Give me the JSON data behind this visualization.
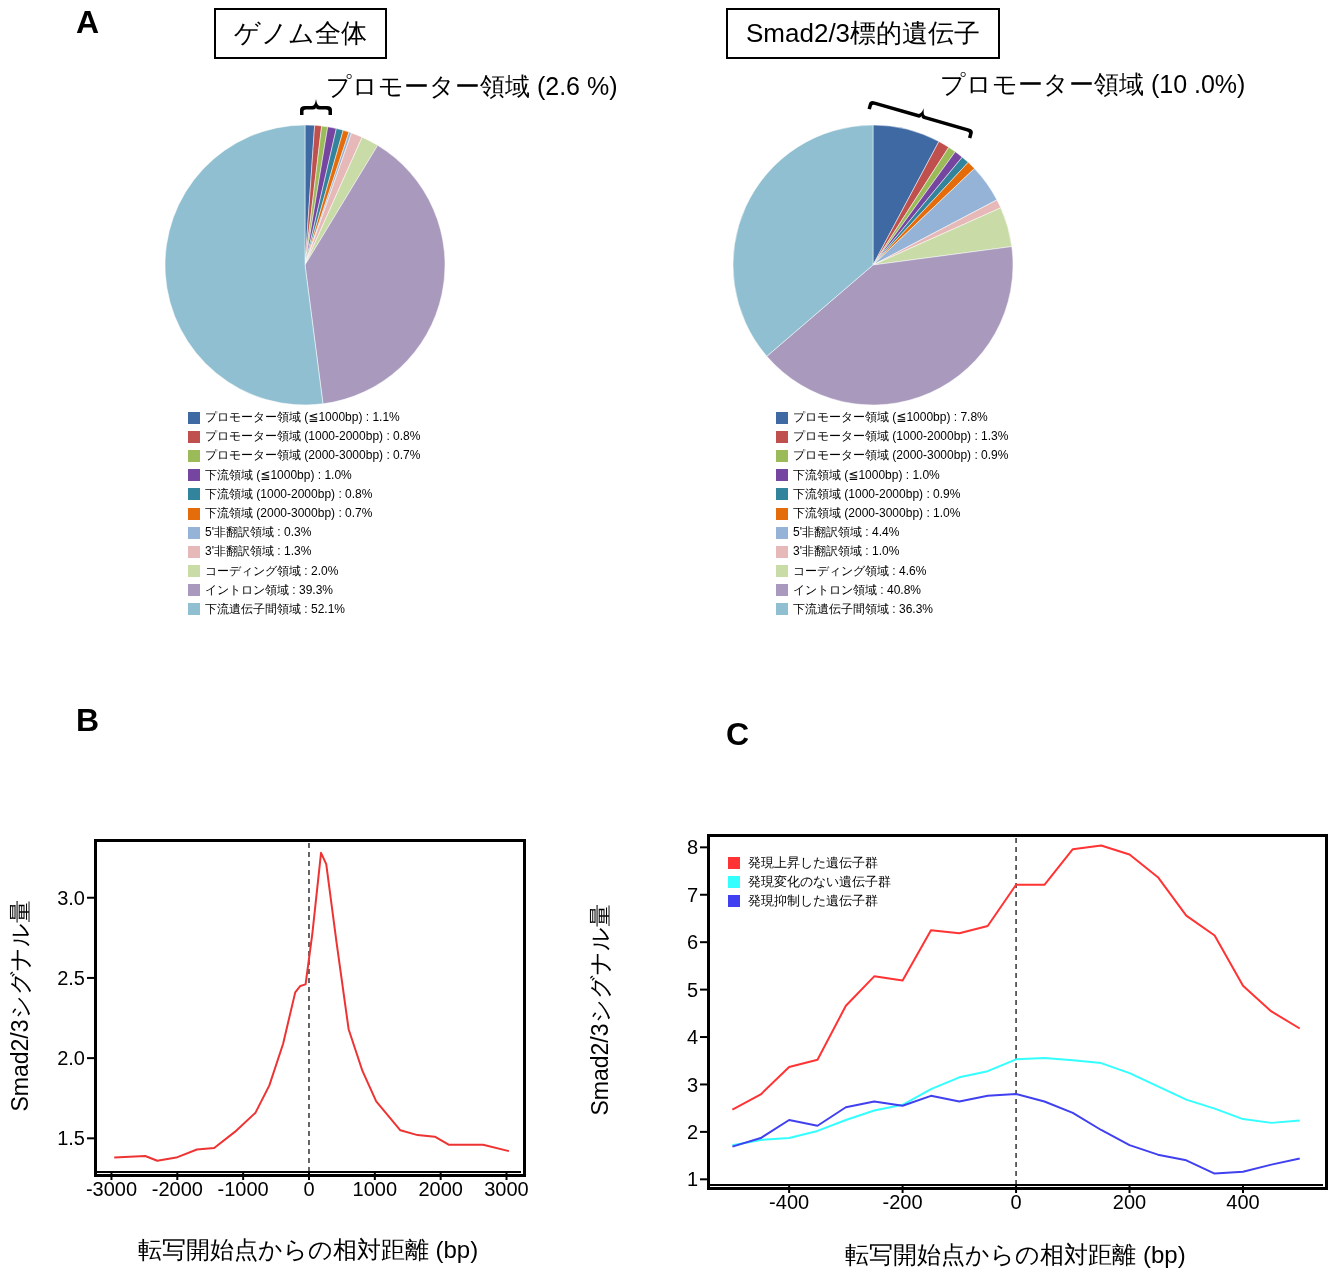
{
  "chart_data": [
    {
      "type": "pie",
      "title": "ゲノム全体",
      "annotations": [
        "A",
        "プロモーター領域 (2.6 %)"
      ],
      "legend": "bottom",
      "categories": [
        "プロモーター領域 (≦1000bp) : 1.1%",
        "プロモーター領域 (1000-2000bp) : 0.8%",
        "プロモーター領域 (2000-3000bp) : 0.7%",
        "下流領域 (≦1000bp) : 1.0%",
        "下流領域 (1000-2000bp) : 0.8%",
        "下流領域 (2000-3000bp) : 0.7%",
        "5'非翻訳領域 : 0.3%",
        "3'非翻訳領域 : 1.3%",
        "コーディング領域 : 2.0%",
        "イントロン領域 : 39.3%",
        "下流遺伝子間領域 : 52.1%"
      ],
      "values": [
        1.1,
        0.8,
        0.7,
        1.0,
        0.8,
        0.7,
        0.3,
        1.3,
        2.0,
        39.3,
        52.1
      ],
      "colors": [
        "#3f69a3",
        "#c0504d",
        "#9bbb59",
        "#7545a0",
        "#31849b",
        "#e46c0a",
        "#95b3d7",
        "#e6b9b8",
        "#c9dba6",
        "#a899bd",
        "#8fbfd0"
      ]
    },
    {
      "type": "pie",
      "title": "Smad2/3標的遺伝子",
      "annotations": [
        "プロモーター領域 (10 .0%)"
      ],
      "legend": "bottom",
      "categories": [
        "プロモーター領域 (≦1000bp) : 7.8%",
        "プロモーター領域 (1000-2000bp) : 1.3%",
        "プロモーター領域 (2000-3000bp) : 0.9%",
        "下流領域 (≦1000bp) : 1.0%",
        "下流領域 (1000-2000bp) : 0.9%",
        "下流領域 (2000-3000bp) : 1.0%",
        "5'非翻訳領域 : 4.4%",
        "3'非翻訳領域 : 1.0%",
        "コーディング領域 : 4.6%",
        "イントロン領域 : 40.8%",
        "下流遺伝子間領域 : 36.3%"
      ],
      "values": [
        7.8,
        1.3,
        0.9,
        1.0,
        0.9,
        1.0,
        4.4,
        1.0,
        4.6,
        40.8,
        36.3
      ],
      "colors": [
        "#3f69a3",
        "#c0504d",
        "#9bbb59",
        "#7545a0",
        "#31849b",
        "#e46c0a",
        "#95b3d7",
        "#e6b9b8",
        "#c9dba6",
        "#a899bd",
        "#8fbfd0"
      ]
    },
    {
      "type": "line",
      "annotations": [
        "B"
      ],
      "xlabel": "転写開始点からの相対距離 (bp)",
      "ylabel": "Smad2/3シグナル量",
      "marker": "none",
      "x": [
        -2958,
        -2487,
        -2304,
        -2016,
        -1702,
        -1440,
        -1126,
        -812,
        -602,
        -393,
        -209,
        -131,
        -52,
        52,
        183,
        262,
        419,
        602,
        812,
        1021,
        1388,
        1649,
        1911,
        2121,
        2382,
        2644,
        3037
      ],
      "series": [
        {
          "color": "#ee3333",
          "values": [
            1.38,
            1.39,
            1.36,
            1.38,
            1.43,
            1.44,
            1.54,
            1.66,
            1.83,
            2.09,
            2.41,
            2.45,
            2.46,
            2.78,
            3.28,
            3.21,
            2.72,
            2.18,
            1.92,
            1.73,
            1.55,
            1.52,
            1.51,
            1.46,
            1.46,
            1.46,
            1.42
          ]
        }
      ],
      "xlim": [
        -3250,
        3220
      ],
      "xticks": [
        -3000,
        -2000,
        -1000,
        0,
        1000,
        2000,
        3000
      ],
      "ylim": [
        1.29,
        3.36
      ],
      "yticks": [
        1.5,
        {
          "value": 2,
          "label": "2.0"
        },
        2.5,
        {
          "value": 3,
          "label": "3.0"
        }
      ],
      "ref_lines": [
        {
          "axis": "x",
          "value": 0,
          "line_style": "dashed",
          "color": "#333333"
        }
      ]
    },
    {
      "type": "line",
      "annotations": [
        "C"
      ],
      "xlabel": "転写開始点からの相対距離 (bp)",
      "ylabel": "Smad2/3シグナル量",
      "marker": "none",
      "legend": "top left",
      "x": [
        -500,
        -450,
        -400,
        -350,
        -300,
        -250,
        -200,
        -150,
        -100,
        -50,
        0,
        50,
        100,
        150,
        200,
        250,
        300,
        350,
        400,
        450,
        500
      ],
      "series": [
        {
          "name": "発現上昇した遺伝子群",
          "color": "#ff3333",
          "values": [
            2.47,
            2.79,
            3.37,
            3.52,
            4.66,
            5.28,
            5.19,
            6.25,
            6.19,
            6.34,
            7.21,
            7.21,
            7.96,
            8.04,
            7.85,
            7.37,
            6.56,
            6.14,
            5.08,
            4.54,
            4.18
          ]
        },
        {
          "name": "発現変化のない遺伝子群",
          "color": "#33ffff",
          "values": [
            1.72,
            1.83,
            1.87,
            2.02,
            2.25,
            2.45,
            2.57,
            2.9,
            3.15,
            3.28,
            3.53,
            3.56,
            3.51,
            3.45,
            3.24,
            2.96,
            2.68,
            2.49,
            2.27,
            2.19,
            2.24
          ]
        },
        {
          "name": "発現抑制した遺伝子群",
          "color": "#4040f0",
          "values": [
            1.69,
            1.87,
            2.25,
            2.13,
            2.52,
            2.64,
            2.55,
            2.76,
            2.64,
            2.76,
            2.8,
            2.64,
            2.4,
            2.04,
            1.72,
            1.52,
            1.4,
            1.12,
            1.16,
            1.31,
            1.44
          ]
        }
      ],
      "xlim": [
        -543,
        541
      ],
      "xticks": [
        -400,
        -200,
        0,
        200,
        400
      ],
      "ylim": [
        0.88,
        8.26
      ],
      "yticks": [
        1,
        2,
        3,
        4,
        5,
        6,
        7,
        8
      ],
      "ref_lines": [
        {
          "axis": "x",
          "value": 0,
          "line_style": "dashed",
          "color": "#333333"
        }
      ]
    }
  ]
}
